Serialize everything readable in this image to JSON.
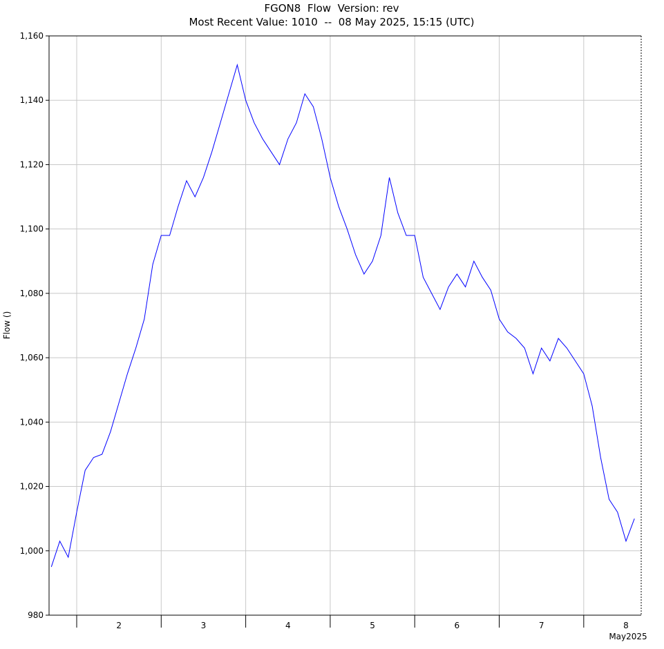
{
  "chart_data": {
    "type": "line",
    "title": "FGON8  Flow  Version: rev",
    "subtitle": "Most Recent Value: 1010  --  08 May 2025, 15:15 (UTC)",
    "y_label": "Flow ()",
    "x_unit_label": "May2025",
    "xlim": [
      1.673,
      8.68
    ],
    "xticks": [
      {
        "value": 2,
        "label": "2"
      },
      {
        "value": 3,
        "label": "3"
      },
      {
        "value": 4,
        "label": "4"
      },
      {
        "value": 5,
        "label": "5"
      },
      {
        "value": 6,
        "label": "6"
      },
      {
        "value": 7,
        "label": "7"
      },
      {
        "value": 8,
        "label": "8"
      }
    ],
    "ylim": [
      980,
      1160
    ],
    "yticks": [
      980,
      {
        "value": 1000,
        "label": "1,000"
      },
      {
        "value": 1020,
        "label": "1,020"
      },
      {
        "value": 1040,
        "label": "1,040"
      },
      {
        "value": 1060,
        "label": "1,060"
      },
      {
        "value": 1080,
        "label": "1,080"
      },
      {
        "value": 1100,
        "label": "1,100"
      },
      {
        "value": 1120,
        "label": "1,120"
      },
      {
        "value": 1140,
        "label": "1,140"
      },
      {
        "value": 1160,
        "label": "1,160"
      }
    ],
    "grid": true,
    "x": [
      1.7,
      1.8,
      1.9,
      2.0,
      2.1,
      2.2,
      2.3,
      2.4,
      2.5,
      2.6,
      2.7,
      2.8,
      2.9,
      3.0,
      3.1,
      3.2,
      3.3,
      3.4,
      3.5,
      3.6,
      3.7,
      3.8,
      3.9,
      4.0,
      4.1,
      4.2,
      4.3,
      4.4,
      4.5,
      4.6,
      4.7,
      4.8,
      4.9,
      5.0,
      5.1,
      5.2,
      5.3,
      5.4,
      5.5,
      5.6,
      5.7,
      5.8,
      5.9,
      6.0,
      6.1,
      6.2,
      6.3,
      6.4,
      6.5,
      6.6,
      6.7,
      6.8,
      6.9,
      7.0,
      7.1,
      7.2,
      7.3,
      7.4,
      7.5,
      7.6,
      7.7,
      7.8,
      7.9,
      8.0,
      8.1,
      8.2,
      8.3,
      8.4,
      8.5,
      8.6
    ],
    "series": [
      {
        "color": "#0000ff",
        "values": [
          995,
          1003,
          998,
          1012,
          1025,
          1029,
          1030,
          1037,
          1046,
          1055,
          1063,
          1072,
          1089,
          1098,
          1098,
          1107,
          1115,
          1110,
          1116,
          1124,
          1133,
          1142,
          1151,
          1140,
          1133,
          1128,
          1124,
          1120,
          1128,
          1133,
          1142,
          1138,
          1128,
          1116,
          1107,
          1100,
          1092,
          1086,
          1090,
          1098,
          1116,
          1105,
          1098,
          1098,
          1085,
          1080,
          1075,
          1082,
          1086,
          1082,
          1090,
          1085,
          1081,
          1072,
          1068,
          1066,
          1063,
          1055,
          1063,
          1059,
          1066,
          1063,
          1059,
          1055,
          1045,
          1029,
          1016,
          1012,
          1003,
          1010
        ]
      }
    ]
  }
}
